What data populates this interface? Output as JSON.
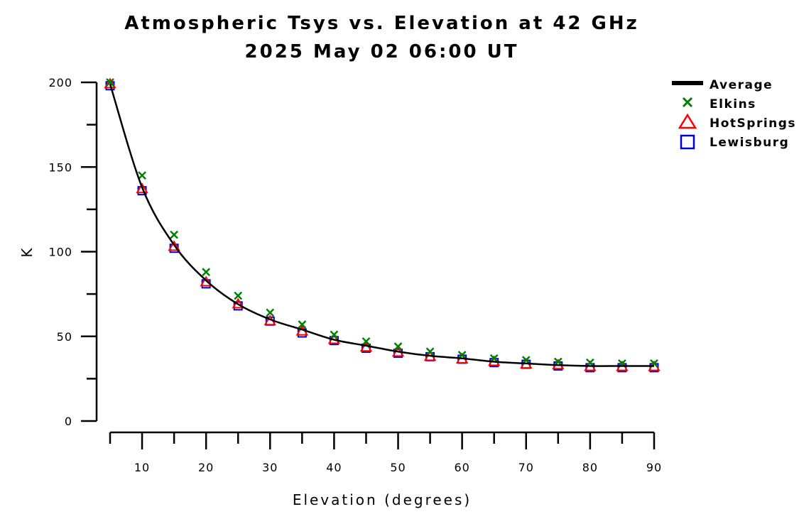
{
  "chart_data": {
    "type": "line",
    "title": "Atmospheric Tsys vs. Elevation at 42 GHz",
    "subtitle": "2025 May 02 06:00 UT",
    "xlabel": "Elevation (degrees)",
    "ylabel": "K",
    "xlim": [
      5,
      90
    ],
    "ylim": [
      0,
      200
    ],
    "x_ticks": [
      10,
      20,
      30,
      40,
      50,
      60,
      70,
      80,
      90
    ],
    "y_ticks": [
      0,
      50,
      100,
      150,
      200
    ],
    "grid": false,
    "legend_position": "top-right",
    "x": [
      5,
      10,
      15,
      20,
      25,
      30,
      35,
      40,
      45,
      50,
      55,
      60,
      65,
      70,
      75,
      80,
      85,
      90
    ],
    "series": [
      {
        "name": "Average",
        "style": "line",
        "color": "#000000",
        "values": [
          199,
          138,
          104,
          83,
          69,
          60,
          54,
          48,
          44.5,
          41,
          38.5,
          37,
          35,
          34,
          33,
          32.5,
          32.5,
          32.5
        ]
      },
      {
        "name": "Elkins",
        "style": "x-marker",
        "color": "#008000",
        "values": [
          200,
          145,
          110,
          88,
          74,
          64,
          57,
          51,
          47,
          44,
          41,
          39,
          37,
          36,
          35,
          34.5,
          34,
          34
        ]
      },
      {
        "name": "HotSprings",
        "style": "triangle-marker",
        "color": "#ff0000",
        "values": [
          199,
          137,
          103,
          82,
          69,
          59,
          53,
          48,
          43.5,
          40.5,
          38,
          36.5,
          35,
          33.5,
          33,
          32,
          32,
          32
        ]
      },
      {
        "name": "Lewisburg",
        "style": "square-marker",
        "color": "#0000cc",
        "values": [
          198,
          136,
          102,
          81,
          68,
          59,
          52,
          47.5,
          43,
          40,
          38,
          36.5,
          34.5,
          33.5,
          32.5,
          31.5,
          31.5,
          31.5
        ]
      }
    ]
  }
}
